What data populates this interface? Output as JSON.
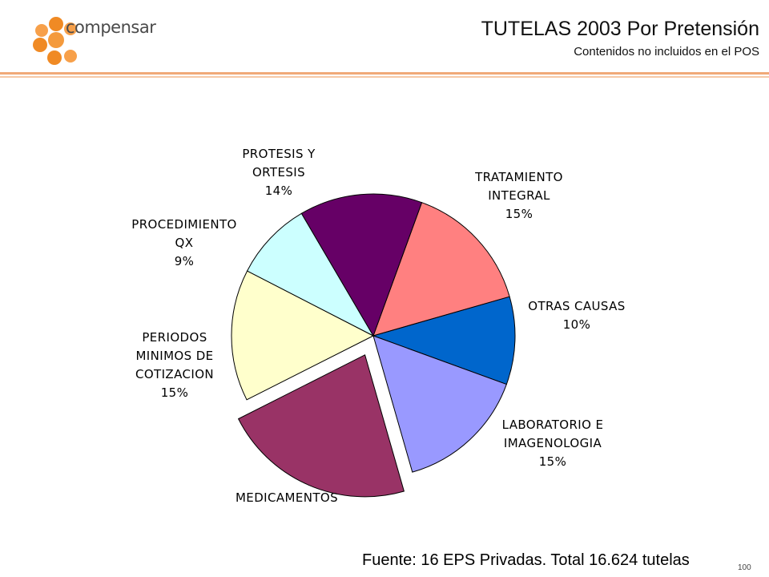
{
  "header": {
    "brand": "compensar",
    "title": "TUTELAS 2003 Por Pretensión",
    "subtitle": "Contenidos no incluidos en el POS"
  },
  "footer": {
    "source": "Fuente: 16 EPS Privadas. Total 16.624 tutelas",
    "page_number": "100"
  },
  "chart_data": {
    "type": "pie",
    "title": "TUTELAS 2003 Por Pretensión",
    "subtitle": "Contenidos no incluidos en el POS",
    "slices": [
      {
        "name": "TRATAMIENTO INTEGRAL",
        "label_lines": [
          "TRATAMIENTO",
          "INTEGRAL",
          "15%"
        ],
        "value": 15,
        "color": "#ff8080",
        "exploded": false
      },
      {
        "name": "OTRAS CAUSAS",
        "label_lines": [
          "OTRAS CAUSAS",
          "10%"
        ],
        "value": 10,
        "color": "#0066cc",
        "exploded": false
      },
      {
        "name": "LABORATORIO E IMAGENOLOGIA",
        "label_lines": [
          "LABORATORIO E",
          "IMAGENOLOGIA",
          "15%"
        ],
        "value": 15,
        "color": "#9999ff",
        "exploded": false
      },
      {
        "name": "MEDICAMENTOS",
        "label_lines": [
          "MEDICAMENTOS"
        ],
        "value": 22,
        "color": "#993366",
        "exploded": true
      },
      {
        "name": "PERIODOS MINIMOS DE COTIZACION",
        "label_lines": [
          "PERIODOS",
          "MINIMOS DE",
          "COTIZACION",
          "15%"
        ],
        "value": 15,
        "color": "#ffffcc",
        "exploded": false
      },
      {
        "name": "PROCEDIMIENTO QX",
        "label_lines": [
          "PROCEDIMIENTO",
          "QX",
          "9%"
        ],
        "value": 9,
        "color": "#ccffff",
        "exploded": false
      },
      {
        "name": "PROTESIS Y ORTESIS",
        "label_lines": [
          "PROTESIS Y",
          "ORTESIS",
          "14%"
        ],
        "value": 14,
        "color": "#660066",
        "exploded": false
      }
    ]
  }
}
